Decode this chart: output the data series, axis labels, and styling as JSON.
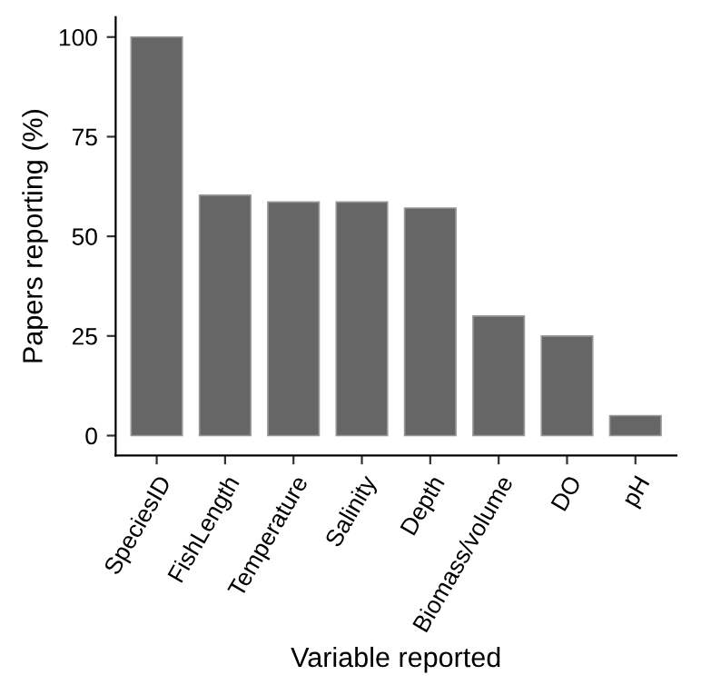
{
  "chart_data": {
    "type": "bar",
    "xlabel": "Variable reported",
    "ylabel": "Papers reporting (%)",
    "categories": [
      "SpeciesID",
      "FishLength",
      "Temperature",
      "Salinity",
      "Depth",
      "Biomass/volume",
      "DO",
      "pH"
    ],
    "values": [
      100,
      60.3,
      58.6,
      58.6,
      57.1,
      30,
      25,
      5
    ],
    "color": "#666666",
    "ylim": [
      -5,
      105
    ],
    "yticks": [
      0,
      25,
      50,
      75,
      100
    ],
    "grid": false
  }
}
